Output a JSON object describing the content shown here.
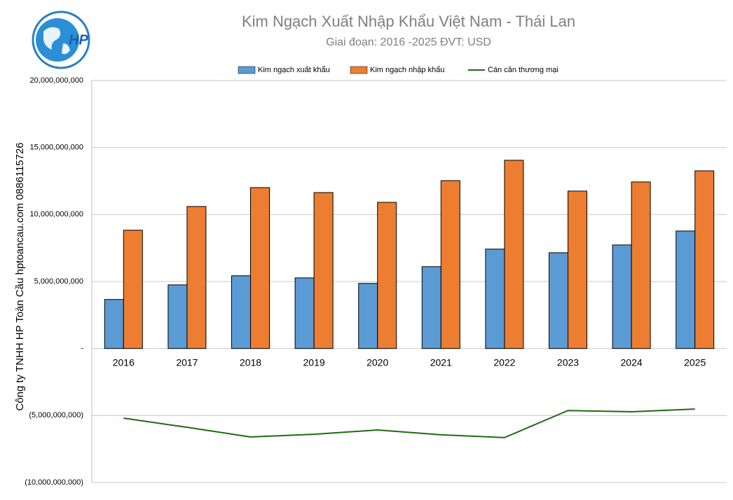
{
  "logo": {
    "text": "HP"
  },
  "chart_data": {
    "type": "bar",
    "title": "Kim Ngạch Xuất Nhập Khẩu Việt Nam - Thái Lan",
    "subtitle": "Giai đoạn: 2016 -2025  ĐVT: USD",
    "y_label": "Công ty TNHH HP Toàn Cầu hptoancau.com 0886115726",
    "categories": [
      "2016",
      "2017",
      "2018",
      "2019",
      "2020",
      "2021",
      "2022",
      "2023",
      "2024",
      "2025"
    ],
    "series": [
      {
        "name": "Kim ngạch xuất khẩu",
        "color": "#5b9bd5",
        "values": [
          3660000000,
          4750000000,
          5430000000,
          5270000000,
          4860000000,
          6110000000,
          7420000000,
          7150000000,
          7730000000,
          8770000000
        ]
      },
      {
        "name": "Kim ngạch nhập khẩu",
        "color": "#ed7d31",
        "values": [
          8830000000,
          10600000000,
          12010000000,
          11640000000,
          10910000000,
          12530000000,
          14050000000,
          11750000000,
          12430000000,
          13260000000
        ]
      },
      {
        "name": "Cán cân thương mại",
        "type": "line",
        "color": "#1f6b12",
        "values": [
          -5200000000,
          -5880000000,
          -6600000000,
          -6400000000,
          -6080000000,
          -6440000000,
          -6650000000,
          -4630000000,
          -4720000000,
          -4520000000
        ]
      }
    ],
    "ylim": [
      -10000000000,
      20000000000
    ],
    "yticks": [
      {
        "value": 20000000000,
        "label": "20,000,000,000"
      },
      {
        "value": 15000000000,
        "label": "15,000,000,000"
      },
      {
        "value": 10000000000,
        "label": "10,000,000,000"
      },
      {
        "value": 5000000000,
        "label": "5,000,000,000"
      },
      {
        "value": 0,
        "label": "-"
      },
      {
        "value": -5000000000,
        "label": "(5,000,000,000)"
      },
      {
        "value": -10000000000,
        "label": "(10,000,000,000)"
      }
    ],
    "grid": true,
    "legend": "top"
  }
}
